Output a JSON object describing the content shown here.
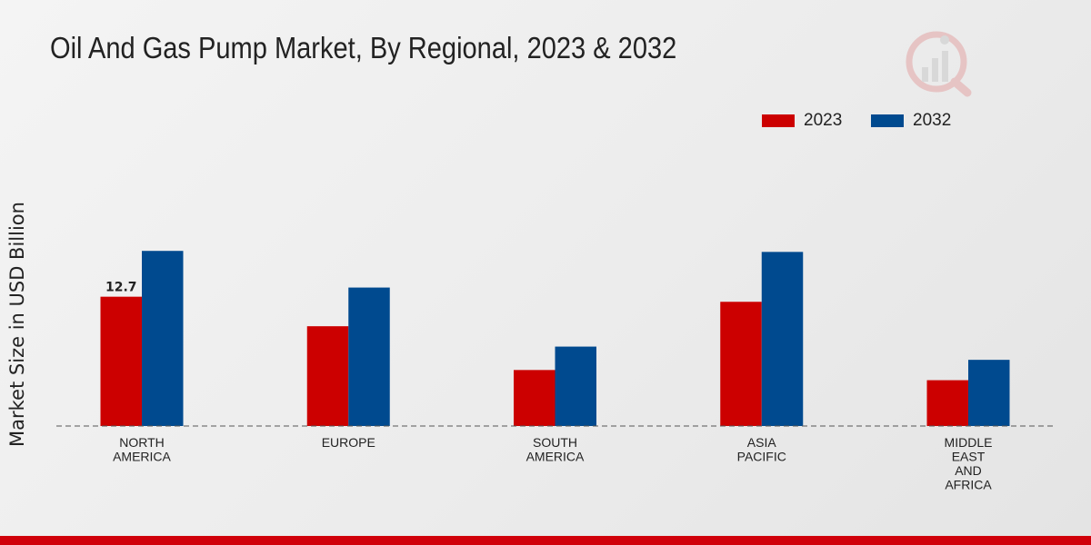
{
  "chart_data": {
    "type": "bar",
    "title": "Oil And Gas Pump Market, By Regional, 2023 & 2032",
    "xlabel": "",
    "ylabel": "Market Size in USD Billion",
    "categories": [
      [
        "NORTH",
        "AMERICA"
      ],
      [
        "EUROPE"
      ],
      [
        "SOUTH",
        "AMERICA"
      ],
      [
        "ASIA",
        "PACIFIC"
      ],
      [
        "MIDDLE",
        "EAST",
        "AND",
        "AFRICA"
      ]
    ],
    "series": [
      {
        "name": "2023",
        "color": "#cc0000",
        "values": [
          12.7,
          9.8,
          5.5,
          12.2,
          4.5
        ]
      },
      {
        "name": "2032",
        "color": "#004a8f",
        "values": [
          17.2,
          13.6,
          7.8,
          17.1,
          6.5
        ]
      }
    ],
    "data_labels": [
      {
        "series": 0,
        "index": 0,
        "text": "12.7"
      }
    ],
    "ylim": [
      0,
      24
    ],
    "grid": false,
    "legend_position": "top-right"
  },
  "logo": {
    "icon": "market-research-logo-icon"
  }
}
